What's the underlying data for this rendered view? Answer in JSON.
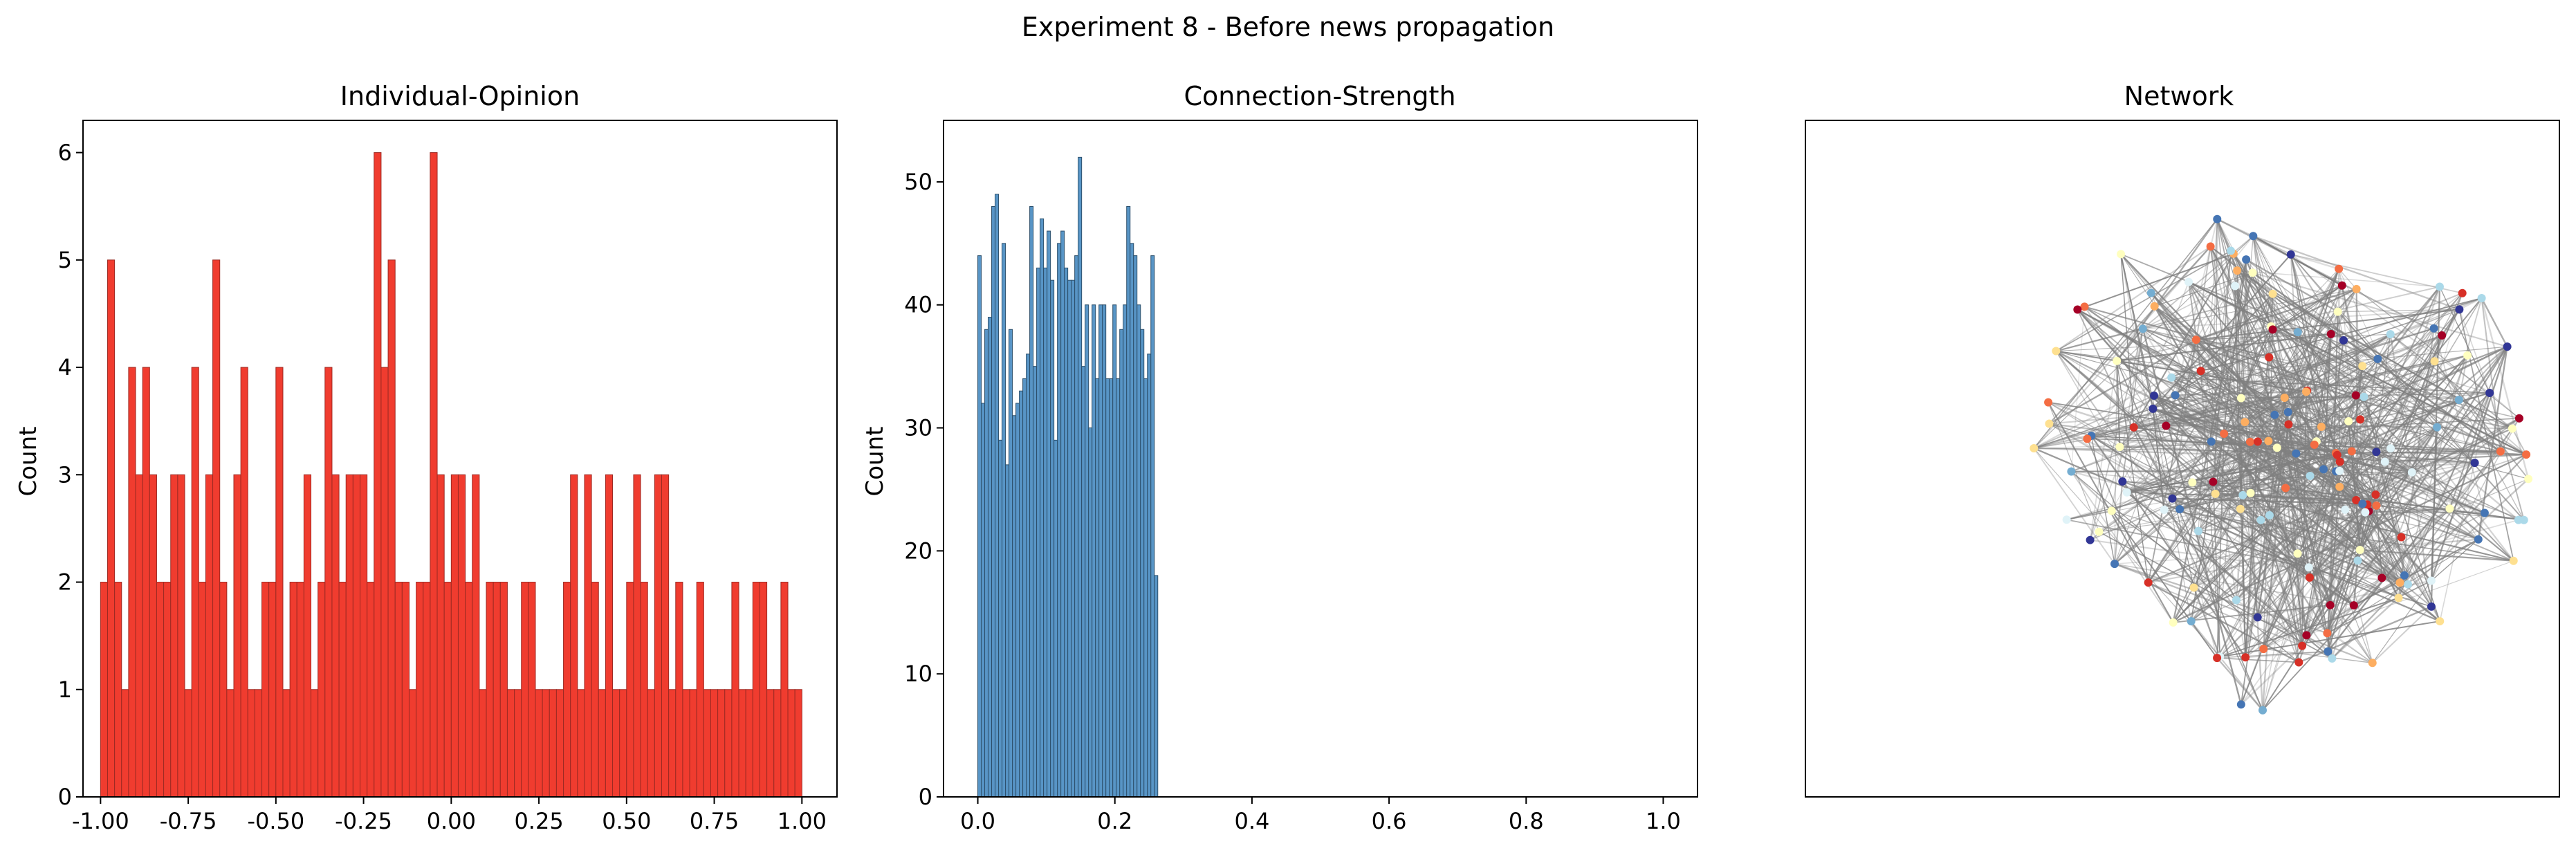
{
  "figure": {
    "suptitle": "Experiment 8 - Before news propagation"
  },
  "colors": {
    "opinion_bar": "#f03c2f",
    "opinion_edge": "#9c2a23",
    "strength_bar": "#5895c6",
    "strength_edge": "#2c4f6b",
    "network_edge": "#808080",
    "node_palette": [
      "#a50026",
      "#d73027",
      "#f46d43",
      "#fdae61",
      "#fee090",
      "#ffffbf",
      "#e0f3f8",
      "#abd9e9",
      "#74add1",
      "#4575b4",
      "#313695"
    ]
  },
  "chart_data": [
    {
      "type": "bar",
      "title": "Individual-Opinion",
      "xlabel": "",
      "ylabel": "Count",
      "xlim": [
        -1.05,
        1.1
      ],
      "ylim": [
        0,
        6.3
      ],
      "bin_start": -1.0,
      "bin_width": 0.02,
      "values": [
        2,
        5,
        2,
        1,
        4,
        3,
        4,
        3,
        2,
        2,
        3,
        3,
        1,
        4,
        2,
        3,
        5,
        2,
        1,
        3,
        4,
        1,
        1,
        2,
        2,
        4,
        1,
        2,
        2,
        3,
        1,
        2,
        4,
        3,
        2,
        3,
        3,
        3,
        2,
        6,
        4,
        5,
        2,
        2,
        1,
        2,
        2,
        6,
        3,
        2,
        3,
        3,
        2,
        3,
        1,
        2,
        2,
        2,
        1,
        1,
        2,
        2,
        1,
        1,
        1,
        1,
        2,
        3,
        1,
        3,
        2,
        1,
        3,
        1,
        1,
        2,
        3,
        2,
        1,
        3,
        3,
        1,
        2,
        1,
        1,
        2,
        1,
        1,
        1,
        1,
        2,
        1,
        1,
        2,
        2,
        1,
        1,
        2,
        1,
        1
      ],
      "xticks": [
        "-1.00",
        "-0.75",
        "-0.50",
        "-0.25",
        "0.00",
        "0.25",
        "0.50",
        "0.75",
        "1.00"
      ],
      "yticks": [
        "0",
        "1",
        "2",
        "3",
        "4",
        "5",
        "6"
      ]
    },
    {
      "type": "bar",
      "title": "Connection-Strength",
      "xlabel": "",
      "ylabel": "Count",
      "xlim": [
        -0.05,
        1.05
      ],
      "ylim": [
        0,
        55
      ],
      "bin_start": 0.0,
      "bin_width": 0.00505,
      "values": [
        44,
        32,
        38,
        39,
        48,
        49,
        29,
        45,
        27,
        38,
        31,
        32,
        33,
        34,
        36,
        48,
        35,
        43,
        47,
        43,
        46,
        42,
        29,
        45,
        46,
        43,
        42,
        42,
        44,
        52,
        35,
        40,
        30,
        40,
        34,
        40,
        40,
        34,
        34,
        40,
        34,
        38,
        40,
        48,
        45,
        44,
        40,
        38,
        34,
        36,
        44,
        18
      ],
      "xticks": [
        "0.0",
        "0.2",
        "0.4",
        "0.6",
        "0.8",
        "1.0"
      ],
      "yticks": [
        "0",
        "10",
        "20",
        "30",
        "40",
        "50"
      ]
    },
    {
      "type": "network",
      "title": "Network",
      "node_count": 170,
      "edge_count": 900
    }
  ]
}
